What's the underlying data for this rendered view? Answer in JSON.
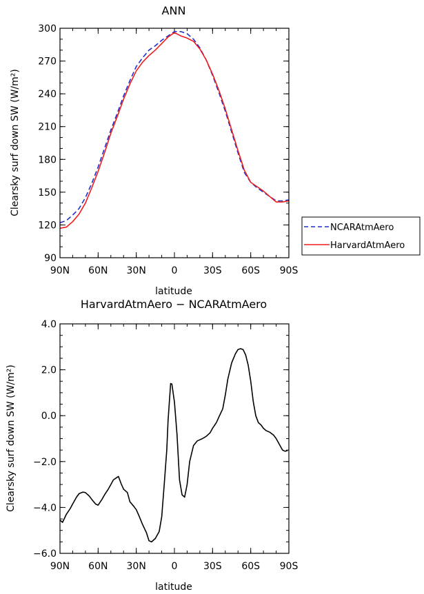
{
  "chart_data": [
    {
      "type": "line",
      "title": "ANN",
      "xlabel": "latitude",
      "ylabel": "Clearsky surf down SW (W/m²)",
      "xlim": [
        90,
        -90
      ],
      "ylim": [
        90,
        300
      ],
      "xticks": [
        90,
        60,
        30,
        0,
        -30,
        -60,
        -90
      ],
      "xtick_labels": [
        "90N",
        "60N",
        "30N",
        "0",
        "30S",
        "60S",
        "90S"
      ],
      "yticks": [
        90,
        120,
        150,
        180,
        210,
        240,
        270,
        300
      ],
      "ytick_labels": [
        "90",
        "120",
        "150",
        "180",
        "210",
        "240",
        "270",
        "300"
      ],
      "legend_position": "right",
      "series": [
        {
          "name": "NCARAtmAero",
          "color": "#1f2fd0",
          "dash": "dashed",
          "x": [
            90,
            85,
            80,
            75,
            70,
            65,
            60,
            55,
            50,
            45,
            40,
            35,
            30,
            25,
            20,
            15,
            10,
            5,
            0,
            -5,
            -10,
            -15,
            -20,
            -25,
            -30,
            -35,
            -40,
            -45,
            -50,
            -55,
            -60,
            -65,
            -70,
            -75,
            -80,
            -85,
            -90
          ],
          "y": [
            122,
            124,
            129,
            135,
            145,
            158,
            173,
            190,
            207,
            222,
            238,
            252,
            265,
            273,
            280,
            284,
            289,
            293,
            297,
            297,
            295,
            290,
            282,
            271,
            257,
            241,
            224,
            205,
            186,
            168,
            159,
            154,
            150,
            146,
            142,
            142,
            143
          ]
        },
        {
          "name": "HarvardAtmAero",
          "color": "#ee1c1c",
          "dash": "solid",
          "x": [
            90,
            85,
            80,
            75,
            70,
            65,
            60,
            55,
            50,
            45,
            40,
            35,
            30,
            25,
            20,
            15,
            10,
            5,
            0,
            -5,
            -10,
            -15,
            -20,
            -25,
            -30,
            -35,
            -40,
            -45,
            -50,
            -55,
            -60,
            -65,
            -70,
            -75,
            -80,
            -85,
            -90
          ],
          "y": [
            117,
            118,
            123,
            130,
            140,
            154,
            169,
            186,
            204,
            219,
            235,
            249,
            261,
            269,
            275,
            280,
            286,
            292,
            296,
            293,
            291,
            288,
            281,
            271,
            258,
            243,
            226,
            207,
            188,
            170,
            159,
            155,
            151,
            146,
            141,
            141,
            142
          ]
        }
      ]
    },
    {
      "type": "line",
      "title": "HarvardAtmAero − NCARAtmAero",
      "xlabel": "latitude",
      "ylabel": "Clearsky surf down SW (W/m²)",
      "xlim": [
        90,
        -90
      ],
      "ylim": [
        -6,
        4
      ],
      "xticks": [
        90,
        60,
        30,
        0,
        -30,
        -60,
        -90
      ],
      "xtick_labels": [
        "90N",
        "60N",
        "30N",
        "0",
        "30S",
        "60S",
        "90S"
      ],
      "yticks": [
        -6,
        -4,
        -2,
        0,
        2,
        4
      ],
      "ytick_labels": [
        "−6.0",
        "−4.0",
        "−2.0",
        "0.0",
        "2.0",
        "4.0"
      ],
      "series": [
        {
          "color": "#000000",
          "dash": "solid",
          "x": [
            90,
            88,
            85,
            82,
            80,
            77,
            75,
            72,
            70,
            67,
            65,
            62,
            60,
            57,
            55,
            52,
            50,
            48,
            46,
            44,
            42,
            40,
            37,
            35,
            32,
            30,
            28,
            25,
            22,
            20,
            18,
            15,
            12,
            10,
            8,
            6,
            5,
            3,
            2,
            0,
            -2,
            -4,
            -6,
            -8,
            -10,
            -12,
            -15,
            -18,
            -20,
            -22,
            -25,
            -28,
            -30,
            -33,
            -35,
            -38,
            -40,
            -42,
            -45,
            -48,
            -50,
            -52,
            -54,
            -56,
            -58,
            -60,
            -62,
            -64,
            -66,
            -68,
            -70,
            -72,
            -75,
            -78,
            -80,
            -83,
            -85,
            -87,
            -89
          ],
          "y": [
            -4.55,
            -4.65,
            -4.3,
            -4.05,
            -3.85,
            -3.55,
            -3.4,
            -3.33,
            -3.35,
            -3.5,
            -3.65,
            -3.85,
            -3.9,
            -3.65,
            -3.45,
            -3.2,
            -3.0,
            -2.8,
            -2.72,
            -2.65,
            -2.95,
            -3.2,
            -3.35,
            -3.75,
            -3.95,
            -4.1,
            -4.35,
            -4.75,
            -5.1,
            -5.45,
            -5.5,
            -5.35,
            -5.05,
            -4.4,
            -3.0,
            -1.5,
            -0.2,
            1.4,
            1.38,
            0.6,
            -0.8,
            -2.8,
            -3.45,
            -3.55,
            -3.0,
            -2.0,
            -1.3,
            -1.1,
            -1.05,
            -1.0,
            -0.9,
            -0.75,
            -0.55,
            -0.3,
            -0.05,
            0.3,
            0.9,
            1.6,
            2.3,
            2.7,
            2.88,
            2.92,
            2.88,
            2.65,
            2.2,
            1.5,
            0.6,
            0.0,
            -0.3,
            -0.4,
            -0.55,
            -0.65,
            -0.72,
            -0.85,
            -1.0,
            -1.3,
            -1.5,
            -1.55,
            -1.52
          ]
        }
      ]
    }
  ],
  "legend": {
    "items": [
      {
        "label": "NCARAtmAero",
        "color": "#1f2fd0",
        "dash": "dashed"
      },
      {
        "label": "HarvardAtmAero",
        "color": "#ee1c1c",
        "dash": "solid"
      }
    ]
  }
}
